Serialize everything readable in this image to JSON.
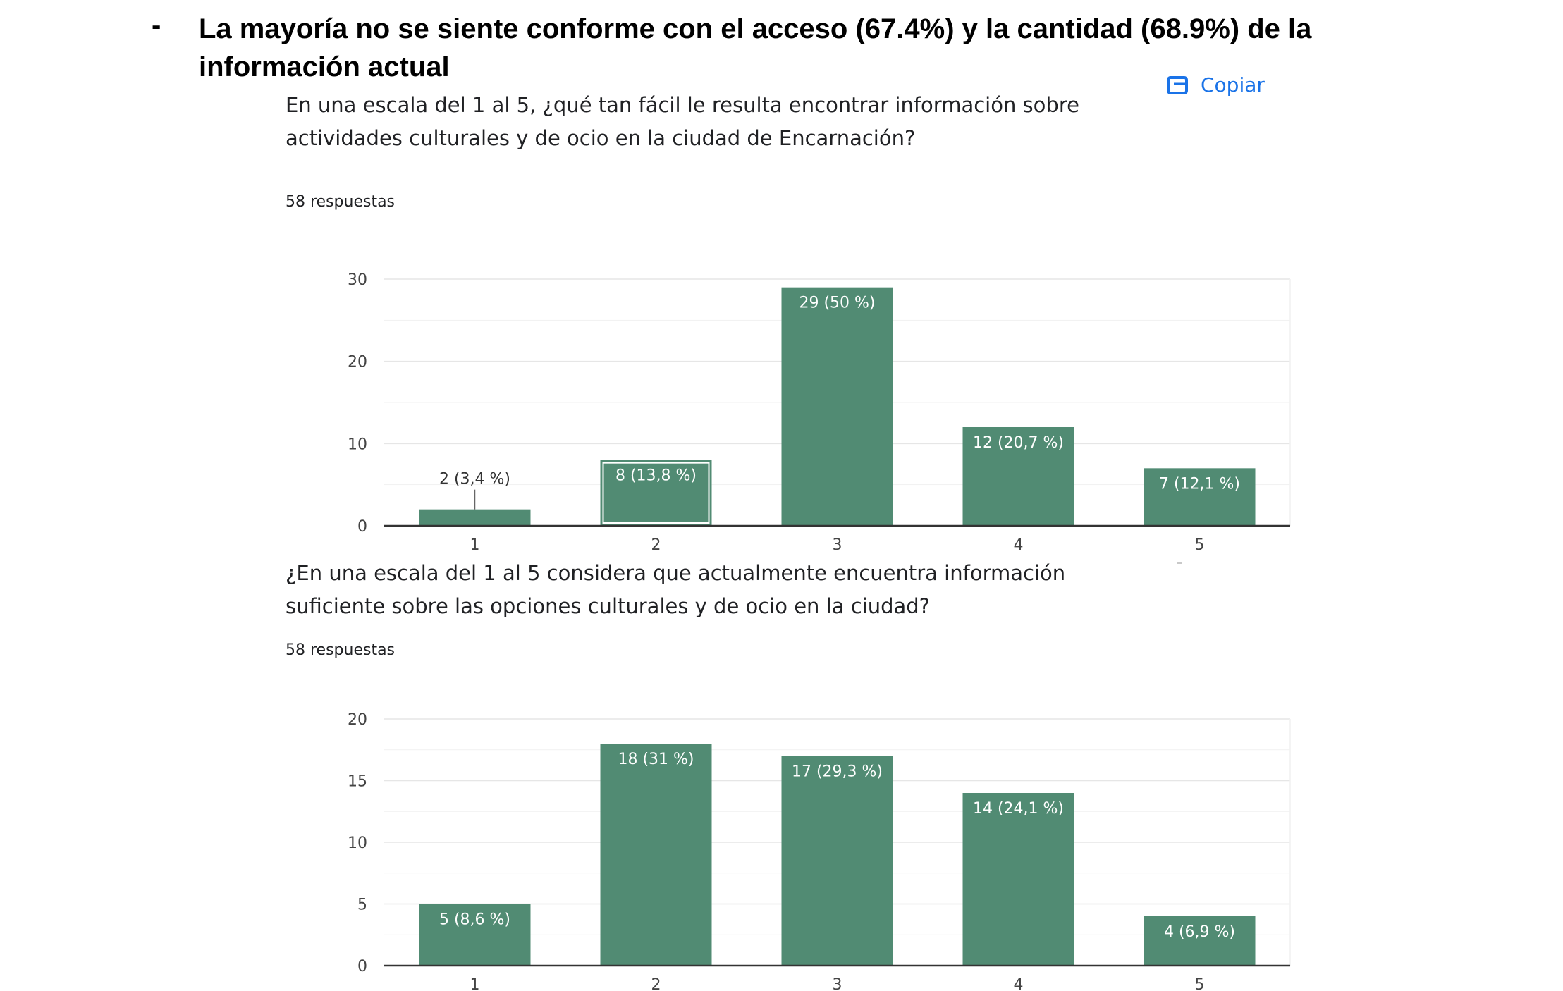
{
  "slide": {
    "bullet": "-",
    "headline": "La mayoría no se siente conforme con el acceso (67.4%) y la cantidad (68.9%) de la información actual"
  },
  "copy_button": {
    "label": "Copiar",
    "icon": "copy-icon",
    "color": "#1a73e8"
  },
  "colors": {
    "bar": "#518b73",
    "bar_label": "#ffffff",
    "grid": "#e6e6e6",
    "axis": "#333333",
    "text": "#202124"
  },
  "charts": [
    {
      "question": "En una escala del 1 al 5, ¿qué tan fácil le resulta encontrar información sobre actividades culturales y de ocio en la ciudad de Encarnación?",
      "responses": "58 respuestas"
    },
    {
      "question": "¿En una escala del 1 al 5 considera que actualmente encuentra información suficiente sobre las opciones culturales y de ocio en la ciudad?",
      "responses": "58 respuestas"
    }
  ],
  "chart_data": [
    {
      "type": "bar",
      "title": "En una escala del 1 al 5, ¿qué tan fácil le resulta encontrar información sobre actividades culturales y de ocio en la ciudad de Encarnación?",
      "categories": [
        "1",
        "2",
        "3",
        "4",
        "5"
      ],
      "values": [
        2,
        8,
        29,
        12,
        7
      ],
      "data_labels": [
        "2 (3,4 %)",
        "8 (13,8 %)",
        "29 (50 %)",
        "12 (20,7 %)",
        "7 (12,1 %)"
      ],
      "ylim": [
        0,
        30
      ],
      "yticks": [
        0,
        10,
        20,
        30
      ],
      "grid": true,
      "highlighted_category": "2"
    },
    {
      "type": "bar",
      "title": "¿En una escala del 1 al 5 considera que actualmente encuentra información suficiente sobre las opciones culturales y de ocio en la ciudad?",
      "categories": [
        "1",
        "2",
        "3",
        "4",
        "5"
      ],
      "values": [
        5,
        18,
        17,
        14,
        4
      ],
      "data_labels": [
        "5 (8,6 %)",
        "18 (31 %)",
        "17 (29,3 %)",
        "14 (24,1 %)",
        "4 (6,9 %)"
      ],
      "ylim": [
        0,
        20
      ],
      "yticks": [
        0,
        5,
        10,
        15,
        20
      ],
      "grid": true
    }
  ]
}
